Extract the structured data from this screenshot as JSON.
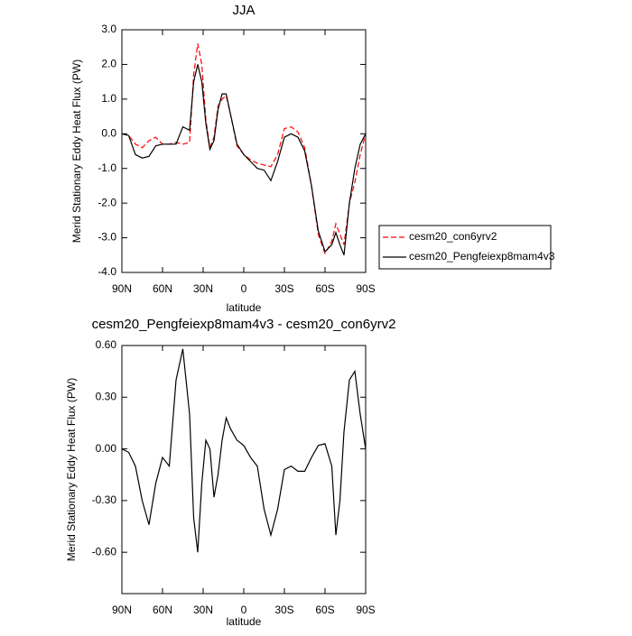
{
  "chart_data": [
    {
      "type": "line",
      "title": "JJA",
      "xlabel": "latitude",
      "ylabel": "Merid Stationary Eddy Heat Flux (PW)",
      "x": [
        90,
        85,
        80,
        75,
        70,
        65,
        60,
        55,
        50,
        45,
        40,
        37,
        34,
        31,
        28,
        25,
        22,
        19,
        16,
        13,
        10,
        5,
        0,
        -5,
        -10,
        -15,
        -20,
        -25,
        -30,
        -35,
        -40,
        -45,
        -50,
        -55,
        -60,
        -65,
        -68,
        -71,
        -74,
        -78,
        -82,
        -86,
        -90
      ],
      "series": [
        {
          "name": "cesm20_con6yrv2",
          "color": "#ff0000",
          "dash": true,
          "values": [
            0,
            -0.05,
            -0.3,
            -0.4,
            -0.2,
            -0.1,
            -0.3,
            -0.3,
            -0.25,
            -0.3,
            -0.25,
            1.7,
            2.6,
            2.0,
            0.4,
            -0.4,
            -0.1,
            0.8,
            1.0,
            1.1,
            0.6,
            -0.35,
            -0.6,
            -0.75,
            -0.85,
            -0.9,
            -0.95,
            -0.6,
            0.15,
            0.2,
            0.05,
            -0.4,
            -1.5,
            -2.9,
            -3.45,
            -3.1,
            -2.6,
            -2.9,
            -3.2,
            -2.0,
            -1.4,
            -0.6,
            0
          ]
        },
        {
          "name": "cesm20_Pengfeiexp8mam4v3",
          "color": "#000000",
          "dash": false,
          "values": [
            0,
            -0.05,
            -0.6,
            -0.7,
            -0.65,
            -0.35,
            -0.3,
            -0.3,
            -0.3,
            0.2,
            0.1,
            1.5,
            2.0,
            1.5,
            0.3,
            -0.45,
            -0.2,
            0.7,
            1.15,
            1.15,
            0.6,
            -0.3,
            -0.6,
            -0.8,
            -1.0,
            -1.05,
            -1.35,
            -0.8,
            -0.1,
            0.0,
            -0.1,
            -0.5,
            -1.5,
            -2.8,
            -3.4,
            -3.2,
            -2.85,
            -3.2,
            -3.5,
            -2.0,
            -1.0,
            -0.3,
            0
          ]
        }
      ],
      "xlim": [
        90,
        -90
      ],
      "xticks": [
        {
          "value": 90,
          "label": "90N"
        },
        {
          "value": 60,
          "label": "60N"
        },
        {
          "value": 30,
          "label": "30N"
        },
        0,
        {
          "value": -30,
          "label": "30S"
        },
        {
          "value": -60,
          "label": "60S"
        },
        {
          "value": -90,
          "label": "90S"
        }
      ],
      "ylim": [
        -4,
        3
      ],
      "yticks": [
        {
          "value": 3,
          "label": "3.0"
        },
        {
          "value": 2,
          "label": "2.0"
        },
        {
          "value": 1,
          "label": "1.0"
        },
        {
          "value": 0,
          "label": "0.0"
        },
        {
          "value": -1,
          "label": "-1.0"
        },
        {
          "value": -2,
          "label": "-2.0"
        },
        {
          "value": -3,
          "label": "-3.0"
        },
        {
          "value": -4,
          "label": "-4.0"
        }
      ],
      "legend": "right"
    },
    {
      "type": "line",
      "title": "cesm20_Pengfeiexp8mam4v3 - cesm20_con6yrv2",
      "xlabel": "latitude",
      "ylabel": "Merid Stationary Eddy Heat Flux (PW)",
      "x": [
        90,
        85,
        80,
        75,
        70,
        65,
        60,
        55,
        50,
        45,
        40,
        37,
        34,
        31,
        28,
        25,
        22,
        19,
        16,
        13,
        10,
        5,
        0,
        -5,
        -10,
        -15,
        -20,
        -25,
        -30,
        -35,
        -40,
        -45,
        -50,
        -55,
        -60,
        -65,
        -68,
        -71,
        -74,
        -78,
        -82,
        -86,
        -90
      ],
      "values": [
        0,
        -0.02,
        -0.1,
        -0.3,
        -0.44,
        -0.2,
        -0.05,
        -0.1,
        0.4,
        0.58,
        0.2,
        -0.4,
        -0.6,
        -0.2,
        0.05,
        0.0,
        -0.28,
        -0.15,
        0.05,
        0.18,
        0.12,
        0.05,
        0.02,
        -0.05,
        -0.1,
        -0.35,
        -0.5,
        -0.35,
        -0.12,
        -0.1,
        -0.13,
        -0.13,
        -0.05,
        0.02,
        0.03,
        -0.1,
        -0.5,
        -0.3,
        0.1,
        0.4,
        0.45,
        0.2,
        0
      ],
      "color": "#000000",
      "xlim": [
        90,
        -90
      ],
      "xticks": [
        {
          "value": 90,
          "label": "90N"
        },
        {
          "value": 60,
          "label": "60N"
        },
        {
          "value": 30,
          "label": "30N"
        },
        0,
        {
          "value": -30,
          "label": "30S"
        },
        {
          "value": -60,
          "label": "60S"
        },
        {
          "value": -90,
          "label": "90S"
        }
      ],
      "ylim": [
        -0.84,
        0.6
      ],
      "yticks": [
        {
          "value": 0.6,
          "label": "0.60"
        },
        {
          "value": 0.3,
          "label": "0.30"
        },
        {
          "value": 0,
          "label": "0.00"
        },
        {
          "value": -0.3,
          "label": "-0.30"
        },
        {
          "value": -0.6,
          "label": "-0.60"
        }
      ]
    }
  ]
}
